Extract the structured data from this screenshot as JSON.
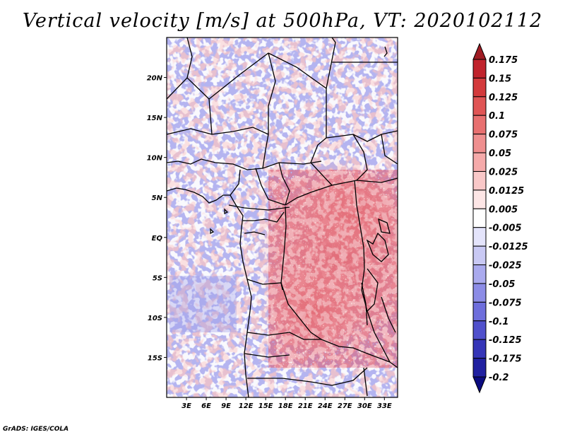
{
  "title": "Vertical velocity [m/s] at 500hPa, VT: 2020102112",
  "footer": "GrADS: IGES/COLA",
  "map": {
    "lat_range": [
      -20,
      25
    ],
    "lon_range": [
      0,
      35
    ],
    "lat_ticks": [
      {
        "value": 20,
        "label": "20N"
      },
      {
        "value": 15,
        "label": "15N"
      },
      {
        "value": 10,
        "label": "10N"
      },
      {
        "value": 5,
        "label": "5N"
      },
      {
        "value": 0,
        "label": "EQ"
      },
      {
        "value": -5,
        "label": "5S"
      },
      {
        "value": -10,
        "label": "10S"
      },
      {
        "value": -15,
        "label": "15S"
      }
    ],
    "lon_ticks": [
      {
        "value": 3,
        "label": "3E"
      },
      {
        "value": 6,
        "label": "6E"
      },
      {
        "value": 9,
        "label": "9E"
      },
      {
        "value": 12,
        "label": "12E"
      },
      {
        "value": 15,
        "label": "15E"
      },
      {
        "value": 18,
        "label": "18E"
      },
      {
        "value": 21,
        "label": "21E"
      },
      {
        "value": 24,
        "label": "24E"
      },
      {
        "value": 27,
        "label": "27E"
      },
      {
        "value": 30,
        "label": "30E"
      },
      {
        "value": 33,
        "label": "33E"
      }
    ]
  },
  "colorbar": {
    "labels": [
      "0.175",
      "0.15",
      "0.125",
      "0.1",
      "0.075",
      "0.05",
      "0.025",
      "0.0125",
      "0.005",
      "-0.005",
      "-0.0125",
      "-0.025",
      "-0.05",
      "-0.075",
      "-0.1",
      "-0.125",
      "-0.175",
      "-0.2"
    ],
    "colors": [
      "#a01c24",
      "#c0232c",
      "#d33a3c",
      "#e05555",
      "#e87070",
      "#ef8f8f",
      "#f5aaaa",
      "#f9c8c8",
      "#fde6e6",
      "#ffffff",
      "#e4e4fb",
      "#c9c9f4",
      "#aaaaee",
      "#8c8ce6",
      "#6e6edc",
      "#5050cc",
      "#3535b8",
      "#2020a0",
      "#0b0b80"
    ]
  }
}
